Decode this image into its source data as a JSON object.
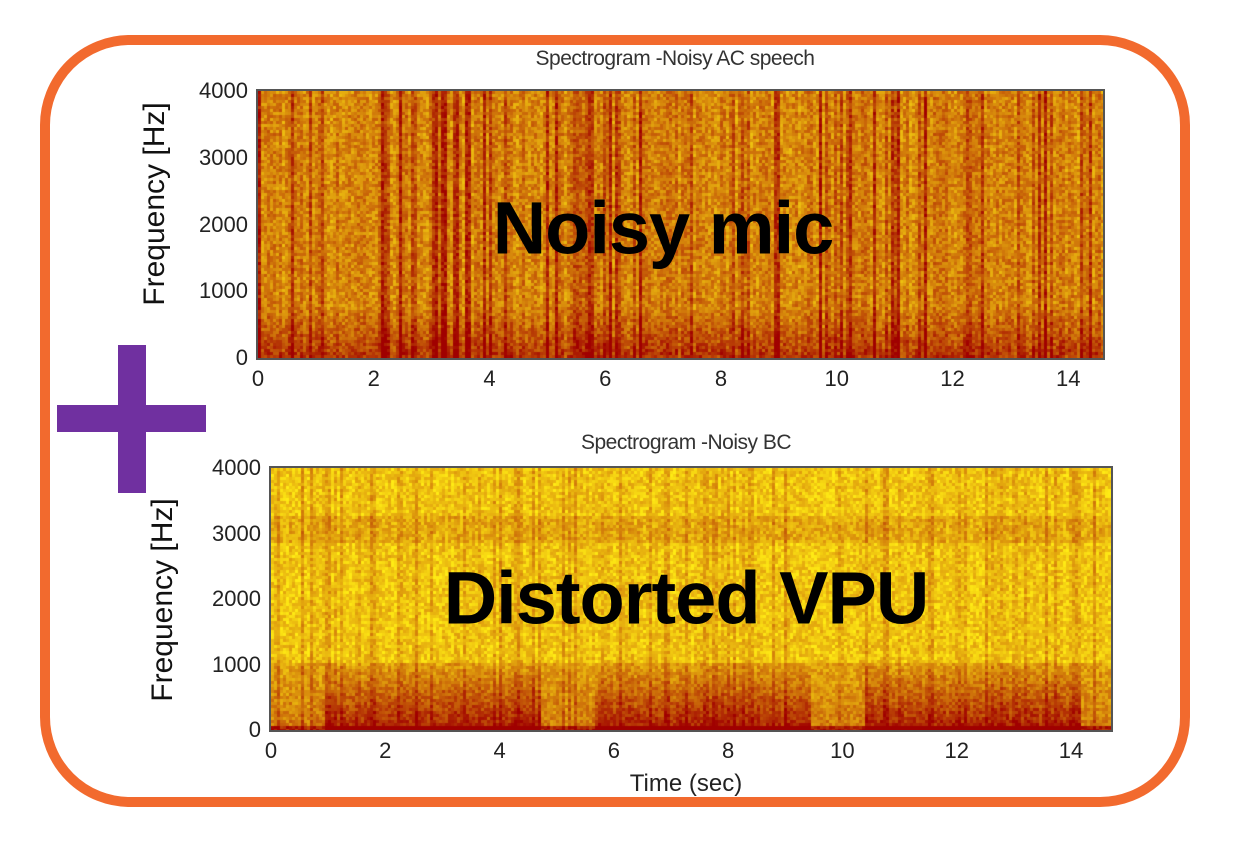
{
  "colors": {
    "frame": "#f26a2e",
    "plus": "#7030a0"
  },
  "plus_icon": "plus-icon",
  "chart_data": [
    {
      "type": "heatmap",
      "title": "Spectrogram -Noisy AC speech",
      "xlabel": "",
      "ylabel": "Frequency [Hz]",
      "xlim": [
        0,
        14.6
      ],
      "ylim": [
        0,
        4000
      ],
      "xticks": [
        "0",
        "2",
        "4",
        "6",
        "8",
        "10",
        "12",
        "14"
      ],
      "yticks": [
        "0",
        "1000",
        "2000",
        "3000",
        "4000"
      ],
      "annotation": "Noisy mic",
      "colormap": "hot",
      "style": "noisy"
    },
    {
      "type": "heatmap",
      "title": "Spectrogram -Noisy BC",
      "xlabel": "Time (sec)",
      "ylabel": "Frequency [Hz]",
      "xlim": [
        0,
        14.7
      ],
      "ylim": [
        0,
        4000
      ],
      "xticks": [
        "0",
        "2",
        "4",
        "6",
        "8",
        "10",
        "12",
        "14"
      ],
      "yticks": [
        "0",
        "1000",
        "2000",
        "3000",
        "4000"
      ],
      "annotation": "Distorted VPU",
      "colormap": "hot",
      "style": "lowband"
    }
  ]
}
